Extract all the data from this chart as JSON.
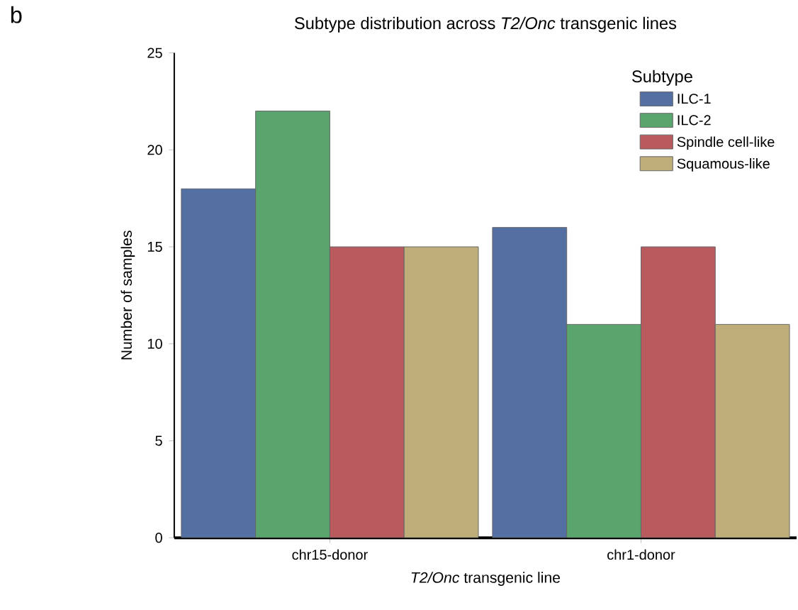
{
  "chart_data": {
    "type": "bar",
    "title": "Subtype distribution across *T2/Onc* transgenic lines",
    "xlabel": "*T2/Onc* transgenic line",
    "ylabel": "Number of samples",
    "legend_title": "Subtype",
    "legend": "top right",
    "annotations": [
      "b"
    ],
    "categories": [
      "chr15-donor",
      "chr1-donor"
    ],
    "series": [
      {
        "name": "ILC-1",
        "color": "#5470a3",
        "values": [
          18,
          16
        ]
      },
      {
        "name": "ILC-2",
        "color": "#5aa46e",
        "values": [
          22,
          11
        ]
      },
      {
        "name": "Spindle cell-like",
        "color": "#b85a5e",
        "values": [
          15,
          15
        ]
      },
      {
        "name": "Squamous-like",
        "color": "#bfae7a",
        "values": [
          15,
          11
        ]
      }
    ],
    "ylim": [
      0,
      25
    ],
    "yticks": [
      0,
      5,
      10,
      15,
      20,
      25
    ]
  }
}
